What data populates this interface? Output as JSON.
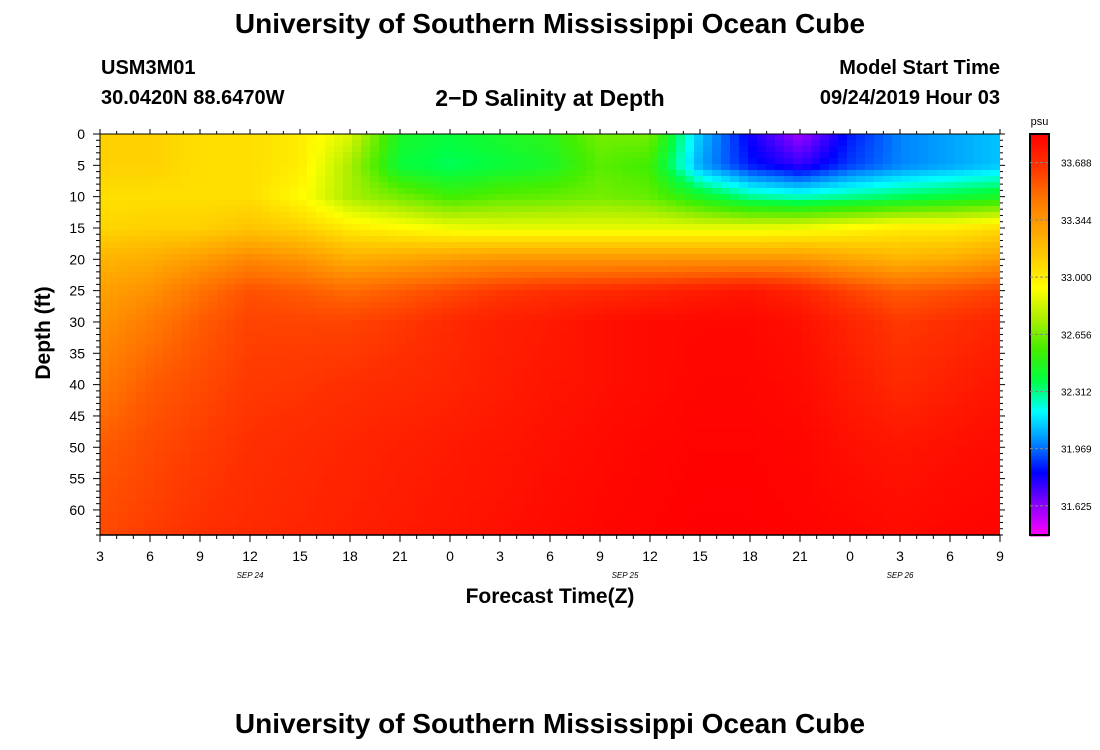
{
  "header": {
    "title": "University of Southern Mississippi Ocean Cube",
    "station_id": "USM3M01",
    "station_coords": "30.0420N 88.6470W",
    "plot_title": "2−D Salinity at Depth",
    "model_start_label": "Model Start Time",
    "model_start_value": "09/24/2019 Hour 03"
  },
  "footer": {
    "title": "University of Southern Mississippi Ocean Cube"
  },
  "chart_data": {
    "type": "heatmap",
    "xlabel": "Forecast Time(Z)",
    "ylabel": "Depth (ft)",
    "colorbar_unit": "psu",
    "x_tick_labels": [
      "3",
      "6",
      "9",
      "12",
      "15",
      "18",
      "21",
      "0",
      "3",
      "6",
      "9",
      "12",
      "15",
      "18",
      "21",
      "0",
      "3",
      "6",
      "9"
    ],
    "date_labels": [
      {
        "label": "SEP 24",
        "hour_index": 3
      },
      {
        "label": "SEP 25",
        "hour_index": 10.5
      },
      {
        "label": "SEP 26",
        "hour_index": 16
      }
    ],
    "x_hours": [
      0,
      18
    ],
    "y_ticks": [
      0,
      5,
      10,
      15,
      20,
      25,
      30,
      35,
      40,
      45,
      50,
      55,
      60
    ],
    "ylim": [
      0,
      64
    ],
    "colorbar_ticks": [
      "33.688",
      "33.344",
      "33.000",
      "32.656",
      "32.312",
      "31.969",
      "31.625"
    ],
    "colorbar_range": [
      31.45,
      33.86
    ],
    "colormap": [
      "#ff00ff",
      "#8800ff",
      "#0000ff",
      "#0088ff",
      "#00ffff",
      "#00ff44",
      "#44ee00",
      "#aaee00",
      "#ffff00",
      "#ffcc00",
      "#ffa000",
      "#ff7000",
      "#ff3000",
      "#ff0000"
    ],
    "depth_grid": [
      0,
      5,
      10,
      15,
      20,
      25,
      30,
      40,
      50,
      64
    ],
    "salinity": [
      [
        33.1,
        33.1,
        33.05,
        33.05,
        33.0,
        32.85,
        32.45,
        32.4,
        32.45,
        32.5,
        32.65,
        32.65,
        32.1,
        31.8,
        31.6,
        31.85,
        32.0,
        32.05,
        32.1
      ],
      [
        33.1,
        33.1,
        33.05,
        33.05,
        33.0,
        32.75,
        32.4,
        32.35,
        32.4,
        32.45,
        32.6,
        32.55,
        32.05,
        31.85,
        31.75,
        31.9,
        32.0,
        32.05,
        32.1
      ],
      [
        33.05,
        33.05,
        33.05,
        33.05,
        32.95,
        32.75,
        32.65,
        32.55,
        32.6,
        32.62,
        32.65,
        32.62,
        32.45,
        32.3,
        32.25,
        32.3,
        32.35,
        32.4,
        32.45
      ],
      [
        33.08,
        33.1,
        33.1,
        33.15,
        33.1,
        33.0,
        32.95,
        32.9,
        32.88,
        32.88,
        32.88,
        32.88,
        32.88,
        32.88,
        32.9,
        32.95,
        33.0,
        33.0,
        33.05
      ],
      [
        33.22,
        33.25,
        33.32,
        33.4,
        33.35,
        33.25,
        33.28,
        33.32,
        33.35,
        33.35,
        33.35,
        33.35,
        33.35,
        33.35,
        33.35,
        33.28,
        33.22,
        33.25,
        33.32
      ],
      [
        33.3,
        33.36,
        33.48,
        33.58,
        33.55,
        33.5,
        33.55,
        33.6,
        33.65,
        33.68,
        33.7,
        33.72,
        33.75,
        33.78,
        33.72,
        33.62,
        33.55,
        33.58,
        33.62
      ],
      [
        33.35,
        33.45,
        33.55,
        33.62,
        33.62,
        33.62,
        33.65,
        33.7,
        33.74,
        33.76,
        33.8,
        33.82,
        33.83,
        33.83,
        33.8,
        33.72,
        33.65,
        33.68,
        33.72
      ],
      [
        33.45,
        33.55,
        33.6,
        33.65,
        33.66,
        33.68,
        33.7,
        33.72,
        33.75,
        33.78,
        33.8,
        33.82,
        33.84,
        33.84,
        33.82,
        33.76,
        33.7,
        33.74,
        33.78
      ],
      [
        33.55,
        33.6,
        33.64,
        33.68,
        33.7,
        33.72,
        33.74,
        33.76,
        33.78,
        33.8,
        33.82,
        33.84,
        33.85,
        33.85,
        33.84,
        33.8,
        33.78,
        33.8,
        33.82
      ],
      [
        33.6,
        33.64,
        33.68,
        33.7,
        33.72,
        33.74,
        33.76,
        33.78,
        33.8,
        33.82,
        33.84,
        33.85,
        33.86,
        33.86,
        33.85,
        33.84,
        33.82,
        33.84,
        33.85
      ]
    ]
  }
}
